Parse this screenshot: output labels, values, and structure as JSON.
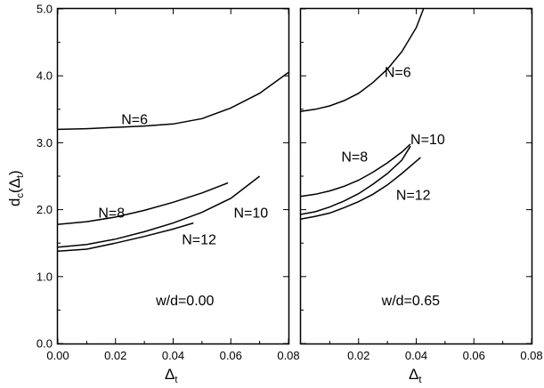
{
  "chart_data": [
    {
      "type": "line",
      "panel": "left",
      "annotation": "w/d=0.00",
      "xlabel": "Δ",
      "xlabel_sub": "t",
      "ylabel": "d",
      "ylabel_sub": "c",
      "ylabel_arg": "(Δ",
      "ylabel_arg_sub": "t",
      "ylabel_close": ")",
      "xlim": [
        0.0,
        0.08
      ],
      "ylim": [
        0.0,
        5.0
      ],
      "x_ticks": [
        "0.00",
        "0.02",
        "0.04",
        "0.06",
        "0.08"
      ],
      "y_ticks": [
        "0.0",
        "1.0",
        "2.0",
        "3.0",
        "4.0",
        "5.0"
      ],
      "series": [
        {
          "name": "N=6",
          "x": [
            0.0,
            0.01,
            0.02,
            0.03,
            0.04,
            0.05,
            0.06,
            0.07,
            0.08
          ],
          "y": [
            3.2,
            3.21,
            3.23,
            3.25,
            3.28,
            3.36,
            3.52,
            3.74,
            4.05
          ]
        },
        {
          "name": "N=8",
          "x": [
            0.0,
            0.01,
            0.02,
            0.03,
            0.04,
            0.05,
            0.059
          ],
          "y": [
            1.78,
            1.82,
            1.89,
            1.99,
            2.11,
            2.25,
            2.4
          ]
        },
        {
          "name": "N=10",
          "x": [
            0.0,
            0.01,
            0.02,
            0.03,
            0.04,
            0.05,
            0.06,
            0.07
          ],
          "y": [
            1.44,
            1.48,
            1.56,
            1.67,
            1.8,
            1.96,
            2.17,
            2.5
          ]
        },
        {
          "name": "N=12",
          "x": [
            0.0,
            0.01,
            0.02,
            0.03,
            0.04,
            0.047
          ],
          "y": [
            1.38,
            1.41,
            1.5,
            1.6,
            1.71,
            1.8
          ]
        }
      ],
      "labels": [
        {
          "text": "N=6",
          "x": 0.022,
          "y": 3.28
        },
        {
          "text": "N=8",
          "x": 0.014,
          "y": 1.88
        },
        {
          "text": "N=10",
          "x": 0.061,
          "y": 1.88
        },
        {
          "text": "N=12",
          "x": 0.043,
          "y": 1.48
        }
      ],
      "note_pos": {
        "x": 0.034,
        "y": 0.57
      }
    },
    {
      "type": "line",
      "panel": "right",
      "annotation": "w/d=0.65",
      "xlabel": "Δ",
      "xlabel_sub": "t",
      "xlim": [
        0.0,
        0.08
      ],
      "ylim": [
        0.0,
        5.0
      ],
      "x_ticks": [
        "0.02",
        "0.04",
        "0.06",
        "0.08"
      ],
      "series": [
        {
          "name": "N=6",
          "x": [
            0.0,
            0.005,
            0.01,
            0.015,
            0.02,
            0.025,
            0.03,
            0.035,
            0.04,
            0.0425
          ],
          "y": [
            3.47,
            3.5,
            3.55,
            3.63,
            3.74,
            3.9,
            4.1,
            4.36,
            4.72,
            5.0
          ]
        },
        {
          "name": "N=8",
          "x": [
            0.0,
            0.005,
            0.01,
            0.015,
            0.02,
            0.025,
            0.03,
            0.035,
            0.038
          ],
          "y": [
            2.2,
            2.23,
            2.28,
            2.35,
            2.44,
            2.56,
            2.7,
            2.86,
            2.98
          ]
        },
        {
          "name": "N=10",
          "x": [
            0.0,
            0.005,
            0.01,
            0.015,
            0.02,
            0.025,
            0.03,
            0.035,
            0.038
          ],
          "y": [
            1.93,
            1.97,
            2.04,
            2.13,
            2.24,
            2.38,
            2.54,
            2.74,
            2.95
          ]
        },
        {
          "name": "N=12",
          "x": [
            0.0,
            0.005,
            0.01,
            0.015,
            0.02,
            0.025,
            0.03,
            0.035,
            0.0415
          ],
          "y": [
            1.86,
            1.9,
            1.95,
            2.03,
            2.12,
            2.23,
            2.37,
            2.54,
            2.78
          ]
        }
      ],
      "labels": [
        {
          "text": "N=6",
          "x": 0.029,
          "y": 3.98
        },
        {
          "text": "N=8",
          "x": 0.014,
          "y": 2.72
        },
        {
          "text": "N=10",
          "x": 0.038,
          "y": 2.98
        },
        {
          "text": "N=12",
          "x": 0.033,
          "y": 2.15
        }
      ],
      "note_pos": {
        "x": 0.028,
        "y": 0.57
      }
    }
  ]
}
